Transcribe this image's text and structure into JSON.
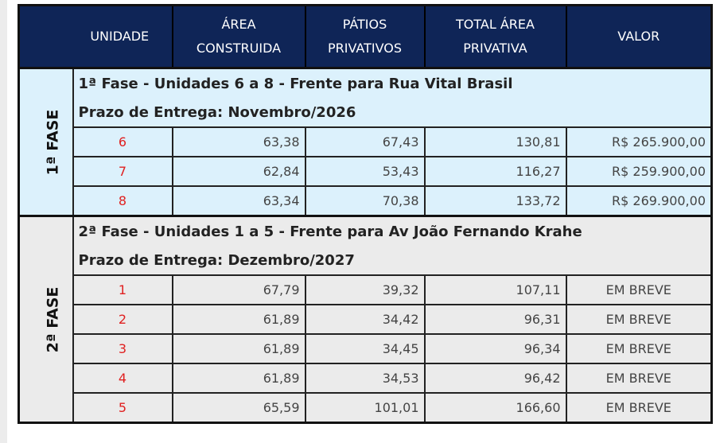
{
  "headers": {
    "unidade": "UNIDADE",
    "area_l1": "ÁREA",
    "area_l2": "CONSTRUIDA",
    "patios_l1": "PÁTIOS",
    "patios_l2": "PRIVATIVOS",
    "total_l1": "TOTAL ÁREA",
    "total_l2": "PRIVATIVA",
    "valor": "VALOR"
  },
  "phase1": {
    "label": "1ª FASE",
    "title": "1ª Fase - Unidades 6 a 8 - Frente para Rua Vital Brasil",
    "deadline": "Prazo de Entrega: Novembro/2026",
    "rows": [
      {
        "unit": "6",
        "area": "63,38",
        "patios": "67,43",
        "total": "130,81",
        "valor": "R$ 265.900,00"
      },
      {
        "unit": "7",
        "area": "62,84",
        "patios": "53,43",
        "total": "116,27",
        "valor": "R$ 259.900,00"
      },
      {
        "unit": "8",
        "area": "63,34",
        "patios": "70,38",
        "total": "133,72",
        "valor": "R$ 269.900,00"
      }
    ]
  },
  "phase2": {
    "label": "2ª FASE",
    "title": "2ª Fase - Unidades 1 a 5 - Frente para Av João Fernando Krahe",
    "deadline": "Prazo de Entrega: Dezembro/2027",
    "rows": [
      {
        "unit": "1",
        "area": "67,79",
        "patios": "39,32",
        "total": "107,11",
        "valor": "EM BREVE"
      },
      {
        "unit": "2",
        "area": "61,89",
        "patios": "34,42",
        "total": "96,31",
        "valor": "EM BREVE"
      },
      {
        "unit": "3",
        "area": "61,89",
        "patios": "34,45",
        "total": "96,34",
        "valor": "EM BREVE"
      },
      {
        "unit": "4",
        "area": "61,89",
        "patios": "34,53",
        "total": "96,42",
        "valor": "EM BREVE"
      },
      {
        "unit": "5",
        "area": "65,59",
        "patios": "101,01",
        "total": "166,60",
        "valor": "EM BREVE"
      }
    ]
  }
}
